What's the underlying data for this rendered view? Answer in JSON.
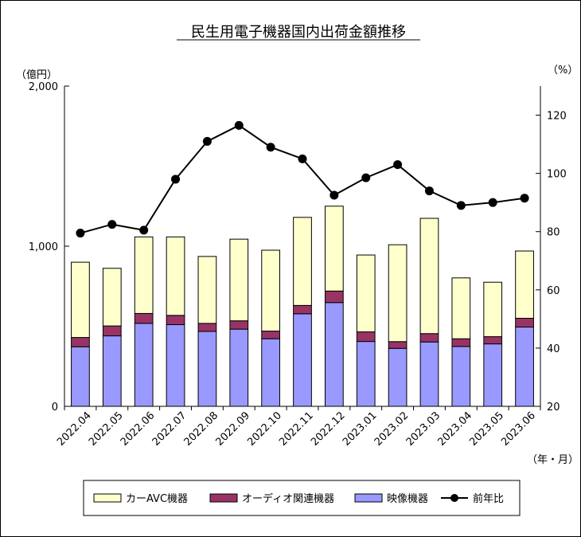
{
  "chart_data": {
    "type": "bar",
    "title": "民生用電子機器国内出荷金額推移",
    "left_axis_unit": "（億円）",
    "right_axis_unit": "（%）",
    "x_axis_unit": "（年・月）",
    "categories": [
      "2022.04",
      "2022.05",
      "2022.06",
      "2022.07",
      "2022.08",
      "2022.09",
      "2022.10",
      "2022.11",
      "2022.12",
      "2023.01",
      "2023.02",
      "2023.03",
      "2023.04",
      "2023.05",
      "2023.06"
    ],
    "left_ylim": [
      0,
      2000
    ],
    "left_ticks": [
      0,
      1000,
      2000
    ],
    "left_tick_labels": [
      "0",
      "1,000",
      "2,000"
    ],
    "right_ylim": [
      20,
      130
    ],
    "right_ticks": [
      20,
      40,
      60,
      80,
      100,
      120
    ],
    "right_tick_labels": [
      "20",
      "40",
      "60",
      "80",
      "100",
      "120"
    ],
    "series": [
      {
        "name": "映像機器",
        "kind": "stack",
        "color": "#9999ff",
        "values": [
          372,
          440,
          518,
          510,
          468,
          482,
          422,
          578,
          648,
          405,
          362,
          402,
          374,
          390,
          495
        ]
      },
      {
        "name": "オーディオ関連機器",
        "kind": "stack",
        "color": "#993366",
        "values": [
          58,
          62,
          62,
          58,
          50,
          52,
          48,
          52,
          72,
          60,
          42,
          52,
          48,
          45,
          55
        ]
      },
      {
        "name": "カーAVC機器",
        "kind": "stack",
        "color": "#ffffcc",
        "values": [
          470,
          360,
          478,
          490,
          418,
          510,
          505,
          550,
          530,
          480,
          605,
          720,
          380,
          340,
          420
        ]
      },
      {
        "name": "前年比",
        "kind": "line",
        "axis": "right",
        "color": "#000000",
        "values": [
          79.5,
          82.5,
          80.5,
          98.0,
          111.0,
          116.5,
          109.0,
          105.0,
          92.5,
          98.5,
          103.0,
          94.0,
          89.0,
          90.0,
          91.5
        ]
      }
    ],
    "legend_order": [
      "カーAVC機器",
      "オーディオ関連機器",
      "映像機器",
      "前年比"
    ],
    "legend_position": "bottom",
    "grid": false
  }
}
